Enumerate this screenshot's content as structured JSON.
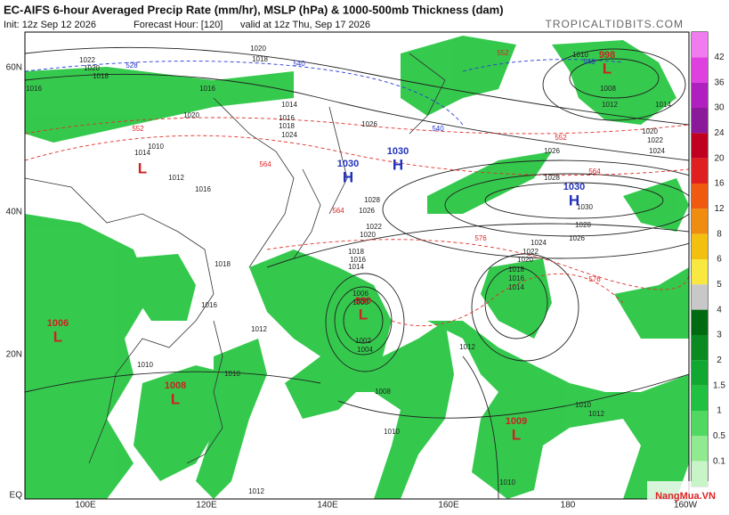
{
  "header": {
    "title": "EC-AIFS 6-hour Averaged Precip Rate (mm/hr), MSLP (hPa) & 1000-500mb Thickness (dam)",
    "init": "Init: 12z Sep 12 2026",
    "forecast_hour": "Forecast Hour: [120]",
    "valid": "valid at 12z Thu, Sep 17 2026",
    "source": "TROPICALTIDBITS.COM"
  },
  "map": {
    "lat_labels": [
      "60N",
      "40N",
      "20N",
      "EQ"
    ],
    "lon_labels": [
      "100E",
      "120E",
      "140E",
      "160E",
      "180",
      "160W"
    ],
    "centers": [
      {
        "value": "1030",
        "letter": "H"
      },
      {
        "value": "1030",
        "letter": "H"
      },
      {
        "value": "1030",
        "letter": "H"
      },
      {
        "value": "998",
        "letter": "L"
      },
      {
        "letter": "L"
      },
      {
        "value": "990",
        "letter": "L"
      },
      {
        "value": "1006",
        "letter": "L"
      },
      {
        "value": "1008",
        "letter": "L"
      },
      {
        "value": "1009",
        "letter": "L"
      }
    ],
    "isobar_labels": [
      "1020",
      "1018",
      "1022",
      "1020",
      "1018",
      "1016",
      "1016",
      "1014",
      "1016",
      "1018",
      "1024",
      "1026",
      "1026",
      "1028",
      "1030",
      "1028",
      "1026",
      "1024",
      "1022",
      "1020",
      "1018",
      "1016",
      "1014",
      "1028",
      "1026",
      "1022",
      "1020",
      "1018",
      "1016",
      "1014",
      "1012",
      "1010",
      "1010",
      "1008",
      "1010",
      "1012",
      "1012",
      "1010",
      "1010",
      "1012",
      "1008",
      "1010",
      "1012",
      "1014",
      "1020",
      "1022",
      "1024",
      "1020",
      "1016",
      "1018",
      "1016",
      "1014",
      "1012",
      "1010",
      "1002",
      "1004",
      "1006",
      "1000"
    ],
    "thickness_labels": [
      "552",
      "552",
      "564",
      "564",
      "564",
      "576",
      "576",
      "552",
      "528",
      "540",
      "540",
      "540"
    ]
  },
  "colorbar": {
    "labels": [
      42,
      36,
      30,
      24,
      20,
      16,
      12,
      8,
      6,
      5,
      4,
      3,
      2,
      1.5,
      1,
      0.5,
      0.1
    ]
  },
  "watermark": "NangMua.VN"
}
